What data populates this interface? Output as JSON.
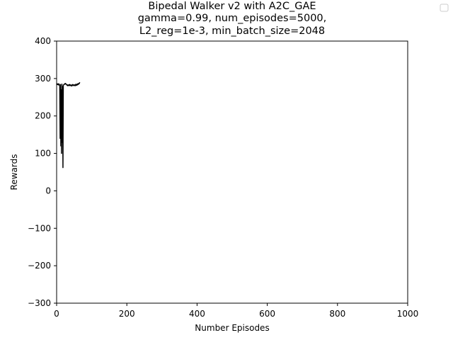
{
  "chart_data": {
    "type": "line",
    "title_lines": [
      "Bipedal Walker v2 with A2C_GAE",
      "gamma=0.99, num_episodes=5000,",
      "L2_reg=1e-3, min_batch_size=2048"
    ],
    "xlabel": "Number Episodes",
    "ylabel": "Rewards",
    "xlim": [
      0,
      1000
    ],
    "ylim": [
      -300,
      400
    ],
    "xticks": [
      0,
      200,
      400,
      600,
      800,
      1000
    ],
    "yticks": [
      -300,
      -200,
      -100,
      0,
      100,
      200,
      300,
      400
    ],
    "xtick_labels": [
      "0",
      "200",
      "400",
      "600",
      "800",
      "1000"
    ],
    "ytick_labels": [
      "−300",
      "−200",
      "−100",
      "0",
      "100",
      "200",
      "300",
      "400"
    ],
    "grid": false,
    "legend": "outside-top-right (empty)",
    "line_color": "#000000",
    "series": [
      {
        "x": [
          0,
          1,
          2,
          3,
          4,
          5,
          6,
          7,
          8,
          9,
          10,
          11,
          12,
          13,
          14,
          15,
          16,
          17,
          18,
          19,
          20,
          21,
          22,
          23,
          24,
          25,
          26,
          27,
          28,
          29,
          30,
          31,
          32,
          33,
          34,
          35,
          36,
          37,
          38,
          39,
          40,
          41,
          42,
          43,
          44,
          45,
          46,
          47,
          48,
          49,
          50,
          51,
          52,
          53,
          54,
          55,
          56,
          57,
          58,
          59,
          60,
          61,
          62,
          63,
          64,
          65,
          66
        ],
        "values": [
          283,
          285,
          286,
          284,
          285,
          283,
          286,
          284,
          283,
          280,
          140,
          284,
          120,
          270,
          100,
          285,
          130,
          278,
          62,
          282,
          283,
          284,
          285,
          286,
          285,
          287,
          286,
          285,
          284,
          283,
          282,
          281,
          283,
          282,
          281,
          283,
          282,
          284,
          281,
          282,
          283,
          281,
          282,
          280,
          283,
          282,
          284,
          281,
          282,
          283,
          282,
          281,
          283,
          282,
          281,
          285,
          283,
          282,
          284,
          283,
          286,
          284,
          285,
          287,
          286,
          288,
          290
        ]
      }
    ]
  }
}
